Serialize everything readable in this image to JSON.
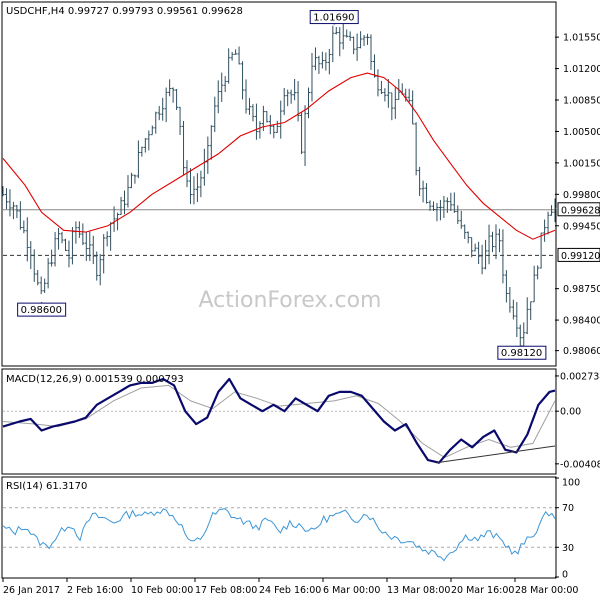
{
  "header": {
    "symbol": "USDCHF,H4",
    "ohlc": "0.99727 0.99793 0.99561 0.99628"
  },
  "watermark": "ActionForex.com",
  "colors": {
    "price": "#2f4f5f",
    "sma": "#e00000",
    "macd": "#0a0a6e",
    "signal": "#a0a0a0",
    "rsi": "#3c96d6",
    "frame": "#000000",
    "level": "#333333"
  },
  "chart_data": [
    {
      "type": "ohlc",
      "title": "USDCHF,H4 0.99727 0.99793 0.99561 0.99628",
      "x_ticks": [
        "26 Jan 2017",
        "2 Feb 16:00",
        "10 Feb 00:00",
        "17 Feb 08:00",
        "24 Feb 16:00",
        "6 Mar 00:00",
        "13 Mar 08:00",
        "20 Mar 16:00",
        "28 Mar 00:00"
      ],
      "y_ticks": [
        "1.01550",
        "1.01200",
        "1.00850",
        "1.00500",
        "1.00150",
        "0.99800",
        "0.99450",
        "0.98750",
        "0.98400",
        "0.98060"
      ],
      "ylim": [
        0.979,
        1.0193
      ],
      "current_price": "0.99628",
      "current_value": 0.99628,
      "support_level": "0.99120",
      "support_value": 0.9912,
      "annotations": [
        {
          "label": "1.01690",
          "value": 1.0169,
          "at": 0.6
        },
        {
          "label": "0.98600",
          "value": 0.986,
          "at": 0.07
        },
        {
          "label": "0.98120",
          "value": 0.9812,
          "at": 0.94
        }
      ],
      "close_path": [
        [
          0.0,
          0.998
        ],
        [
          0.02,
          0.9968
        ],
        [
          0.03,
          0.995
        ],
        [
          0.05,
          0.992
        ],
        [
          0.06,
          0.9885
        ],
        [
          0.07,
          0.9862
        ],
        [
          0.08,
          0.9895
        ],
        [
          0.1,
          0.9935
        ],
        [
          0.12,
          0.991
        ],
        [
          0.13,
          0.9945
        ],
        [
          0.15,
          0.9925
        ],
        [
          0.17,
          0.9898
        ],
        [
          0.19,
          0.9945
        ],
        [
          0.21,
          0.996
        ],
        [
          0.23,
          0.999
        ],
        [
          0.25,
          1.003
        ],
        [
          0.27,
          1.006
        ],
        [
          0.29,
          1.0085
        ],
        [
          0.31,
          1.01
        ],
        [
          0.32,
          1.0065
        ],
        [
          0.33,
          0.9988
        ],
        [
          0.35,
          0.9985
        ],
        [
          0.37,
          1.002
        ],
        [
          0.38,
          1.007
        ],
        [
          0.4,
          1.011
        ],
        [
          0.42,
          1.014
        ],
        [
          0.44,
          1.008
        ],
        [
          0.46,
          1.005
        ],
        [
          0.47,
          1.008
        ],
        [
          0.49,
          1.004
        ],
        [
          0.51,
          1.01
        ],
        [
          0.53,
          1.0085
        ],
        [
          0.54,
          1.003
        ],
        [
          0.56,
          1.013
        ],
        [
          0.58,
          1.012
        ],
        [
          0.6,
          1.016
        ],
        [
          0.62,
          1.015
        ],
        [
          0.64,
          1.0145
        ],
        [
          0.66,
          1.016
        ],
        [
          0.67,
          1.011
        ],
        [
          0.69,
          1.01
        ],
        [
          0.71,
          1.0075
        ],
        [
          0.72,
          1.01
        ],
        [
          0.74,
          1.007
        ],
        [
          0.75,
          1.0
        ],
        [
          0.77,
          0.9975
        ],
        [
          0.79,
          0.9965
        ],
        [
          0.81,
          0.9975
        ],
        [
          0.83,
          0.994
        ],
        [
          0.85,
          0.992
        ],
        [
          0.87,
          0.9905
        ],
        [
          0.88,
          0.9925
        ],
        [
          0.9,
          0.993
        ],
        [
          0.91,
          0.987
        ],
        [
          0.92,
          0.986
        ],
        [
          0.93,
          0.9842
        ],
        [
          0.94,
          0.9818
        ],
        [
          0.95,
          0.9855
        ],
        [
          0.96,
          0.9875
        ],
        [
          0.97,
          0.9912
        ],
        [
          0.98,
          0.9945
        ],
        [
          0.99,
          0.997
        ],
        [
          1.0,
          0.9963
        ]
      ],
      "sma_path": [
        [
          0.0,
          1.002
        ],
        [
          0.04,
          0.999
        ],
        [
          0.07,
          0.996
        ],
        [
          0.11,
          0.994
        ],
        [
          0.15,
          0.9938
        ],
        [
          0.19,
          0.9945
        ],
        [
          0.23,
          0.996
        ],
        [
          0.27,
          0.998
        ],
        [
          0.31,
          0.9995
        ],
        [
          0.35,
          1.001
        ],
        [
          0.39,
          1.0025
        ],
        [
          0.43,
          1.0045
        ],
        [
          0.47,
          1.0055
        ],
        [
          0.51,
          1.006
        ],
        [
          0.55,
          1.0075
        ],
        [
          0.59,
          1.0095
        ],
        [
          0.63,
          1.011
        ],
        [
          0.66,
          1.0115
        ],
        [
          0.69,
          1.011
        ],
        [
          0.72,
          1.0095
        ],
        [
          0.75,
          1.007
        ],
        [
          0.78,
          1.004
        ],
        [
          0.81,
          1.0015
        ],
        [
          0.84,
          0.999
        ],
        [
          0.87,
          0.997
        ],
        [
          0.9,
          0.9955
        ],
        [
          0.93,
          0.994
        ],
        [
          0.96,
          0.993
        ],
        [
          1.0,
          0.994
        ]
      ]
    },
    {
      "type": "line",
      "title": "MACD(12,26,9) 0.001539 0.000793",
      "y_ticks": [
        "0.002738",
        "0.00",
        "-0.004088"
      ],
      "ylim": [
        -0.0048,
        0.0032
      ],
      "series": [
        {
          "name": "MACD",
          "values": [
            [
              0.0,
              -0.0012
            ],
            [
              0.03,
              -0.0008
            ],
            [
              0.05,
              -0.0006
            ],
            [
              0.07,
              -0.0015
            ],
            [
              0.09,
              -0.0012
            ],
            [
              0.11,
              -0.001
            ],
            [
              0.13,
              -0.0008
            ],
            [
              0.15,
              -0.0005
            ],
            [
              0.17,
              0.0005
            ],
            [
              0.19,
              0.001
            ],
            [
              0.21,
              0.0015
            ],
            [
              0.23,
              0.002
            ],
            [
              0.25,
              0.0022
            ],
            [
              0.27,
              0.0022
            ],
            [
              0.29,
              0.0025
            ],
            [
              0.31,
              0.002
            ],
            [
              0.33,
              0.0
            ],
            [
              0.35,
              -0.001
            ],
            [
              0.37,
              -0.0005
            ],
            [
              0.39,
              0.0015
            ],
            [
              0.41,
              0.0025
            ],
            [
              0.43,
              0.001
            ],
            [
              0.45,
              0.0005
            ],
            [
              0.47,
              0.0
            ],
            [
              0.49,
              0.0005
            ],
            [
              0.51,
              0.0
            ],
            [
              0.53,
              0.001
            ],
            [
              0.55,
              0.0005
            ],
            [
              0.57,
              0.0
            ],
            [
              0.59,
              0.0012
            ],
            [
              0.61,
              0.0015
            ],
            [
              0.63,
              0.0015
            ],
            [
              0.65,
              0.0012
            ],
            [
              0.67,
              0.0002
            ],
            [
              0.69,
              -0.0008
            ],
            [
              0.71,
              -0.0015
            ],
            [
              0.73,
              -0.001
            ],
            [
              0.75,
              -0.0025
            ],
            [
              0.77,
              -0.0038
            ],
            [
              0.79,
              -0.004
            ],
            [
              0.81,
              -0.003
            ],
            [
              0.83,
              -0.0022
            ],
            [
              0.85,
              -0.0028
            ],
            [
              0.87,
              -0.002
            ],
            [
              0.89,
              -0.0015
            ],
            [
              0.91,
              -0.003
            ],
            [
              0.93,
              -0.0032
            ],
            [
              0.95,
              -0.0018
            ],
            [
              0.97,
              0.0005
            ],
            [
              0.99,
              0.0015
            ],
            [
              1.0,
              0.0016
            ]
          ]
        },
        {
          "name": "Signal",
          "values": [
            [
              0.0,
              -0.0008
            ],
            [
              0.06,
              -0.001
            ],
            [
              0.1,
              -0.0012
            ],
            [
              0.15,
              -0.0006
            ],
            [
              0.2,
              0.0008
            ],
            [
              0.25,
              0.0018
            ],
            [
              0.3,
              0.002
            ],
            [
              0.34,
              0.0008
            ],
            [
              0.38,
              0.0002
            ],
            [
              0.42,
              0.0015
            ],
            [
              0.46,
              0.001
            ],
            [
              0.5,
              0.0004
            ],
            [
              0.55,
              0.0006
            ],
            [
              0.6,
              0.0008
            ],
            [
              0.64,
              0.0012
            ],
            [
              0.68,
              0.0006
            ],
            [
              0.72,
              -0.0008
            ],
            [
              0.76,
              -0.0025
            ],
            [
              0.8,
              -0.0036
            ],
            [
              0.84,
              -0.0028
            ],
            [
              0.88,
              -0.0022
            ],
            [
              0.92,
              -0.0028
            ],
            [
              0.96,
              -0.0025
            ],
            [
              1.0,
              0.0008
            ]
          ]
        }
      ],
      "trendline": [
        [
          0.785,
          -0.004
        ],
        [
          1.0,
          -0.0027
        ]
      ]
    },
    {
      "type": "line",
      "title": "RSI(14) 61.3170",
      "y_ticks": [
        "100",
        "70",
        "30",
        "0"
      ],
      "ylim": [
        0,
        100
      ],
      "levels": [
        70,
        30
      ],
      "series": [
        {
          "name": "RSI",
          "values": [
            [
              0.0,
              50
            ],
            [
              0.02,
              45
            ],
            [
              0.04,
              52
            ],
            [
              0.06,
              38
            ],
            [
              0.08,
              30
            ],
            [
              0.1,
              42
            ],
            [
              0.12,
              55
            ],
            [
              0.14,
              40
            ],
            [
              0.16,
              62
            ],
            [
              0.18,
              60
            ],
            [
              0.2,
              55
            ],
            [
              0.22,
              62
            ],
            [
              0.24,
              65
            ],
            [
              0.26,
              62
            ],
            [
              0.28,
              68
            ],
            [
              0.3,
              66
            ],
            [
              0.32,
              55
            ],
            [
              0.34,
              33
            ],
            [
              0.36,
              40
            ],
            [
              0.38,
              62
            ],
            [
              0.4,
              68
            ],
            [
              0.42,
              60
            ],
            [
              0.44,
              55
            ],
            [
              0.46,
              50
            ],
            [
              0.48,
              58
            ],
            [
              0.5,
              45
            ],
            [
              0.52,
              55
            ],
            [
              0.54,
              52
            ],
            [
              0.56,
              45
            ],
            [
              0.58,
              58
            ],
            [
              0.6,
              62
            ],
            [
              0.62,
              64
            ],
            [
              0.64,
              58
            ],
            [
              0.66,
              65
            ],
            [
              0.68,
              50
            ],
            [
              0.7,
              42
            ],
            [
              0.72,
              38
            ],
            [
              0.74,
              36
            ],
            [
              0.76,
              28
            ],
            [
              0.78,
              25
            ],
            [
              0.8,
              20
            ],
            [
              0.82,
              30
            ],
            [
              0.84,
              42
            ],
            [
              0.86,
              38
            ],
            [
              0.88,
              45
            ],
            [
              0.9,
              38
            ],
            [
              0.92,
              28
            ],
            [
              0.93,
              22
            ],
            [
              0.94,
              32
            ],
            [
              0.96,
              42
            ],
            [
              0.97,
              52
            ],
            [
              0.98,
              60
            ],
            [
              0.99,
              66
            ],
            [
              1.0,
              61
            ]
          ]
        }
      ]
    }
  ]
}
